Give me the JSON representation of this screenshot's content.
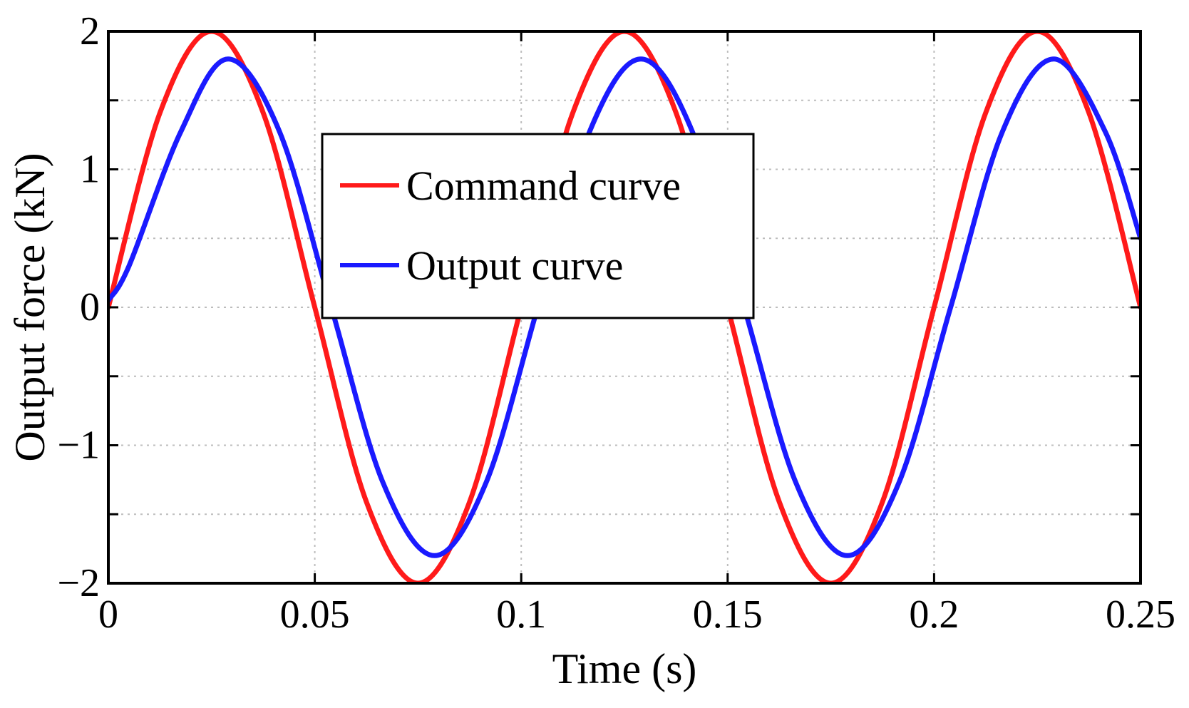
{
  "chart_data": {
    "type": "line",
    "title": "",
    "xlabel": "Time (s)",
    "ylabel": "Output force (kN)",
    "xlim": [
      0,
      0.25
    ],
    "ylim": [
      -2,
      2
    ],
    "xticks": [
      0,
      0.05,
      0.1,
      0.15,
      0.2,
      0.25
    ],
    "xtick_labels": [
      "0",
      "0.05",
      "0.1",
      "0.15",
      "0.2",
      "0.25"
    ],
    "yticks": [
      -2,
      -1,
      0,
      1,
      2
    ],
    "ytick_labels": [
      "−2",
      "−1",
      "0",
      "1",
      "2"
    ],
    "grid": true,
    "legend_position": "upper-center",
    "series": [
      {
        "name": "Command curve",
        "color": "#ff1a1a",
        "x": [
          0,
          0.0125,
          0.025,
          0.0375,
          0.05,
          0.0625,
          0.075,
          0.0875,
          0.1,
          0.1125,
          0.125,
          0.1375,
          0.15,
          0.1625,
          0.175,
          0.1875,
          0.2,
          0.2125,
          0.225,
          0.2375,
          0.25
        ],
        "y": [
          0,
          1.41,
          2.0,
          1.41,
          0,
          -1.41,
          -2.0,
          -1.41,
          0,
          1.41,
          2.0,
          1.41,
          0,
          -1.41,
          -2.0,
          -1.41,
          0,
          1.41,
          2.0,
          1.41,
          0
        ]
      },
      {
        "name": "Output curve",
        "color": "#1a1aff",
        "x": [
          0,
          0.005,
          0.0175,
          0.029,
          0.0415,
          0.054,
          0.0665,
          0.079,
          0.0915,
          0.104,
          0.1165,
          0.129,
          0.1415,
          0.154,
          0.1665,
          0.179,
          0.1915,
          0.204,
          0.2165,
          0.229,
          0.2415,
          0.25
        ],
        "y": [
          0.05,
          0.3,
          1.27,
          1.8,
          1.27,
          0,
          -1.27,
          -1.8,
          -1.27,
          0,
          1.27,
          1.8,
          1.27,
          0,
          -1.27,
          -1.8,
          -1.27,
          0,
          1.27,
          1.8,
          1.27,
          0.5
        ]
      }
    ]
  }
}
